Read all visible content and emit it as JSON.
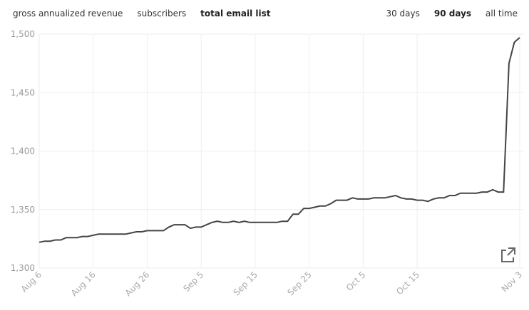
{
  "metrics": [
    "gross annualized revenue",
    "subscribers",
    "total email list"
  ],
  "ranges": [
    "30 days",
    "90 days",
    "all time"
  ],
  "chart_data": {
    "type": "line",
    "categories": [
      "Aug 6",
      null,
      null,
      null,
      null,
      null,
      null,
      null,
      null,
      null,
      "Aug 16",
      null,
      null,
      null,
      null,
      null,
      null,
      null,
      null,
      null,
      "Aug 26",
      null,
      null,
      null,
      null,
      null,
      null,
      null,
      null,
      null,
      "Sep 5",
      null,
      null,
      null,
      null,
      null,
      null,
      null,
      null,
      null,
      "Sep 15",
      null,
      null,
      null,
      null,
      null,
      null,
      null,
      null,
      null,
      "Sep 25",
      null,
      null,
      null,
      null,
      null,
      null,
      null,
      null,
      null,
      "Oct 5",
      null,
      null,
      null,
      null,
      null,
      null,
      null,
      null,
      null,
      "Oct 15",
      null,
      null,
      null,
      null,
      null,
      null,
      null,
      null,
      null,
      null,
      null,
      null,
      null,
      null,
      null,
      null,
      null,
      null,
      "Nov 3"
    ],
    "series": [
      {
        "color": "#444444",
        "values": [
          1322,
          1323,
          1323,
          1324,
          1324,
          1326,
          1326,
          1326,
          1327,
          1327,
          1328,
          1329,
          1329,
          1329,
          1329,
          1329,
          1329,
          1330,
          1331,
          1331,
          1332,
          1332,
          1332,
          1332,
          1335,
          1337,
          1337,
          1337,
          1334,
          1335,
          1335,
          1337,
          1339,
          1340,
          1339,
          1339,
          1340,
          1339,
          1340,
          1339,
          1339,
          1339,
          1339,
          1339,
          1339,
          1340,
          1340,
          1346,
          1346,
          1351,
          1351,
          1352,
          1353,
          1353,
          1355,
          1358,
          1358,
          1358,
          1360,
          1359,
          1359,
          1359,
          1360,
          1360,
          1360,
          1361,
          1362,
          1360,
          1359,
          1359,
          1358,
          1358,
          1357,
          1359,
          1360,
          1360,
          1362,
          1362,
          1364,
          1364,
          1364,
          1364,
          1365,
          1365,
          1367,
          1365,
          1365,
          1475,
          1493,
          1497
        ]
      }
    ],
    "ylim": [
      1300,
      1500
    ],
    "yticks": [
      {
        "value": 1300,
        "label": "1,300"
      },
      {
        "value": 1350,
        "label": "1,350"
      },
      {
        "value": 1400,
        "label": "1,400"
      },
      {
        "value": 1450,
        "label": "1,450"
      },
      {
        "value": 1500,
        "label": "1,500"
      }
    ],
    "grid": true
  }
}
